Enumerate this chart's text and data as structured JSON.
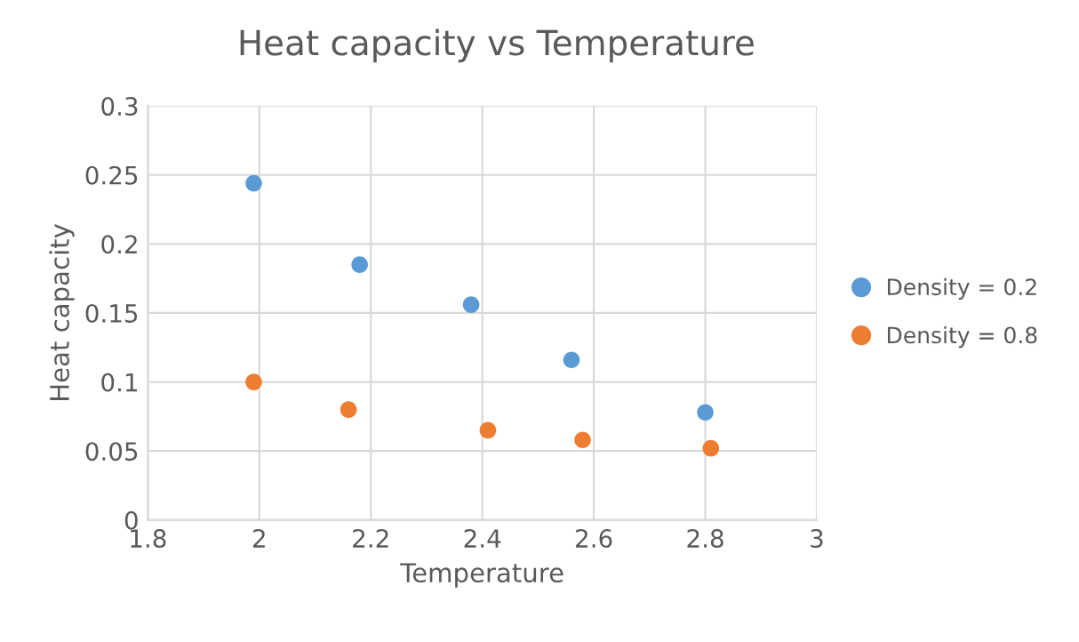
{
  "chart_data": {
    "type": "scatter",
    "title": "Heat capacity vs Temperature",
    "xlabel": "Temperature",
    "ylabel": "Heat capacity",
    "series": [
      {
        "name": "Density = 0.2",
        "color": "#5b9bd5",
        "x": [
          1.99,
          2.18,
          2.38,
          2.56,
          2.8
        ],
        "values": [
          0.244,
          0.185,
          0.156,
          0.116,
          0.078
        ]
      },
      {
        "name": "Density = 0.8",
        "color": "#ed7d31",
        "x": [
          1.99,
          2.16,
          2.41,
          2.58,
          2.81
        ],
        "values": [
          0.1,
          0.08,
          0.065,
          0.058,
          0.052
        ]
      }
    ],
    "xlim": [
      1.8,
      3
    ],
    "xticks": [
      1.8,
      2,
      2.2,
      2.4,
      2.6,
      2.8,
      3
    ],
    "ylim": [
      0,
      0.3
    ],
    "yticks": [
      0,
      0.05,
      0.1,
      0.15,
      0.2,
      0.25,
      0.3
    ],
    "grid": true,
    "legend": "right",
    "marker": "circle"
  }
}
